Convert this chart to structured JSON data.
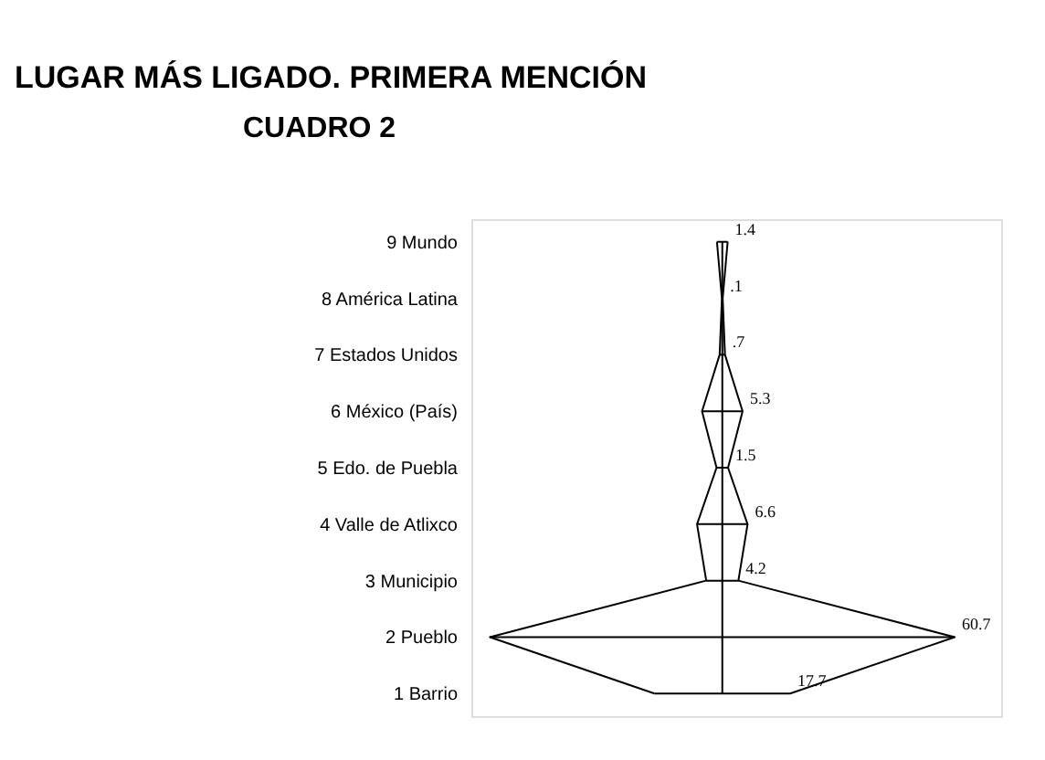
{
  "chart_data": {
    "type": "other",
    "title": "LUGAR MÁS LIGADO. PRIMERA MENCIÓN",
    "annotations": [
      "CUADRO 2"
    ],
    "categories": [
      "9 Mundo",
      "8 América Latina",
      "7 Estados Unidos",
      "6 México (País)",
      "5 Edo. de Puebla",
      "4 Valle de Atlixco",
      "3 Municipio",
      "2 Pueblo",
      "1 Barrio"
    ],
    "values": [
      1.4,
      0.1,
      0.7,
      5.3,
      1.5,
      6.6,
      4.2,
      60.7,
      17.7
    ],
    "value_labels": [
      "1.4",
      ".1",
      ".7",
      "5.3",
      "1.5",
      "6.6",
      "4.2",
      "60.7",
      "17.7"
    ],
    "color": "#000000",
    "data_labels": true
  }
}
